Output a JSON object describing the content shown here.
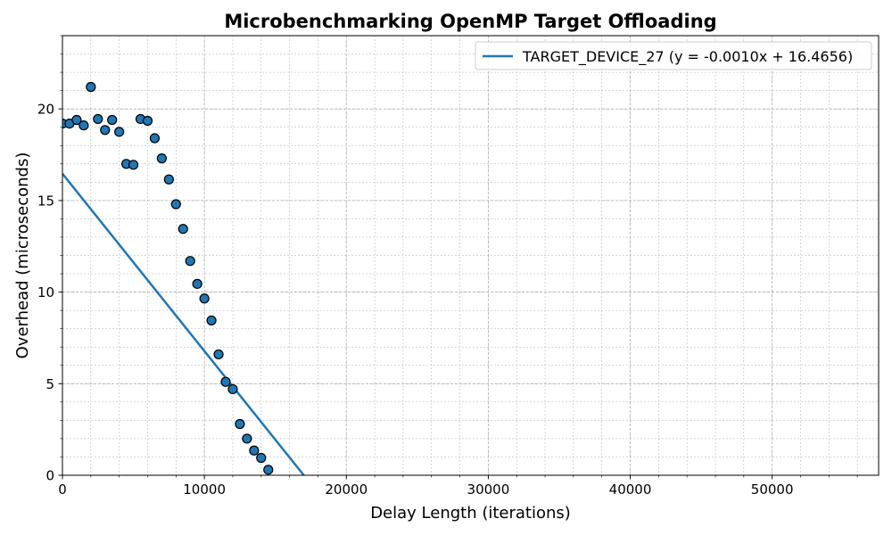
{
  "chart_data": {
    "type": "scatter",
    "title": "Microbenchmarking OpenMP Target Offloading",
    "xlabel": "Delay Length (iterations)",
    "ylabel": "Overhead (microseconds)",
    "xlim": [
      0,
      57500
    ],
    "ylim": [
      0,
      24
    ],
    "xticks": [
      0,
      10000,
      20000,
      30000,
      40000,
      50000
    ],
    "yticks": [
      0,
      5,
      10,
      15,
      20
    ],
    "grid": true,
    "grid_minor": true,
    "legend_position": "upper-right",
    "colors": {
      "series": "#1f77b4",
      "marker_edge": "#000000",
      "grid": "#b0b0b0"
    },
    "series": [
      {
        "name": "TARGET_DEVICE_27",
        "x": [
          0,
          500,
          1000,
          1500,
          2000,
          2500,
          3000,
          3500,
          4000,
          4500,
          5000,
          5500,
          6000,
          6500,
          7000,
          7500,
          8000,
          8500,
          9000,
          9500,
          10000,
          10500,
          11000,
          11500,
          12000,
          12500,
          13000,
          13500,
          14000,
          14500
        ],
        "y": [
          19.2,
          19.2,
          19.4,
          19.1,
          21.2,
          19.45,
          18.85,
          19.4,
          18.75,
          17.0,
          16.95,
          19.45,
          19.35,
          18.4,
          17.3,
          16.15,
          14.8,
          13.45,
          11.7,
          10.45,
          9.65,
          8.45,
          6.6,
          5.1,
          4.7,
          2.8,
          2.0,
          1.35,
          0.95,
          0.3
        ]
      }
    ],
    "fit": {
      "label": "TARGET_DEVICE_27 (y = -0.0010x + 16.4656)",
      "slope": -0.0009683,
      "intercept": 16.4656
    }
  }
}
